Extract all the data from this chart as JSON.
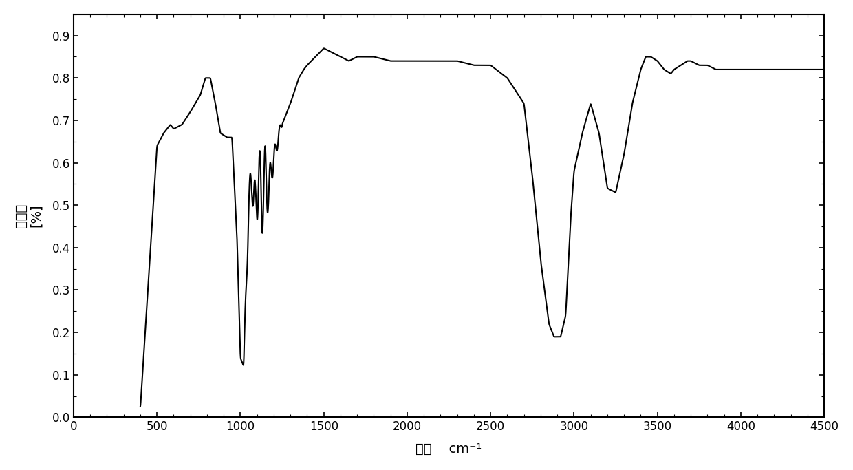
{
  "xlabel": "波数    cm⁻¹",
  "ylabel": "吸光度\n[%]",
  "xlim": [
    0,
    4500
  ],
  "ylim": [
    0.0,
    0.95
  ],
  "xticks": [
    0,
    500,
    1000,
    1500,
    2000,
    2500,
    3000,
    3500,
    4000,
    4500
  ],
  "yticks": [
    0.0,
    0.1,
    0.2,
    0.3,
    0.4,
    0.5,
    0.6,
    0.7,
    0.8,
    0.9
  ],
  "line_color": "black",
  "line_width": 1.5,
  "background_color": "white",
  "figsize": [
    12.4,
    6.83
  ],
  "dpi": 100
}
